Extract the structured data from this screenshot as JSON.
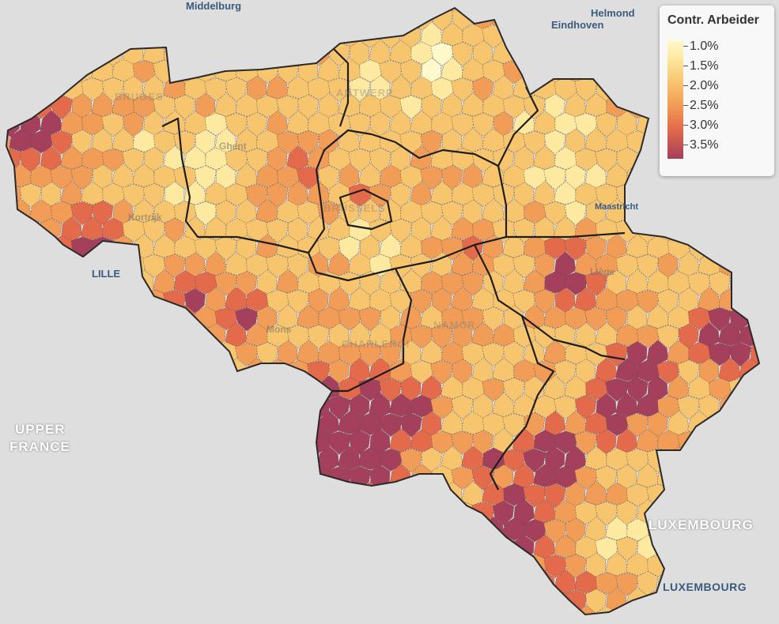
{
  "legend": {
    "title": "Contr. Arbeider",
    "items": [
      "1.0%",
      "1.5%",
      "2.0%",
      "2.5%",
      "3.0%",
      "3.5%"
    ]
  },
  "labels": {
    "middelburg": "Middelburg",
    "helmond": "Helmond",
    "eindhoven": "Eindhoven",
    "lille": "LILLE",
    "upper_france_1": "UPPER",
    "upper_france_2": "FRANCE",
    "luxembourg_country": "LUXEMBOURG",
    "luxembourg_city": "LUXEMBOURG",
    "maastricht": "Maastricht",
    "bruges": "BRUGES",
    "antwerp": "ANTWERP",
    "ghent": "Ghent",
    "kortrijk": "Kortrijk",
    "brussels": "BRUSSELS",
    "mons": "Mons",
    "charleroi": "CHARLEROI",
    "namur": "NAMUR",
    "liege": "Liège"
  },
  "colors": {
    "background": "#dcdcdc",
    "scale": [
      "#fff9cc",
      "#fde9a0",
      "#f8c56f",
      "#f19c57",
      "#e36a4a",
      "#a43f5c"
    ]
  }
}
